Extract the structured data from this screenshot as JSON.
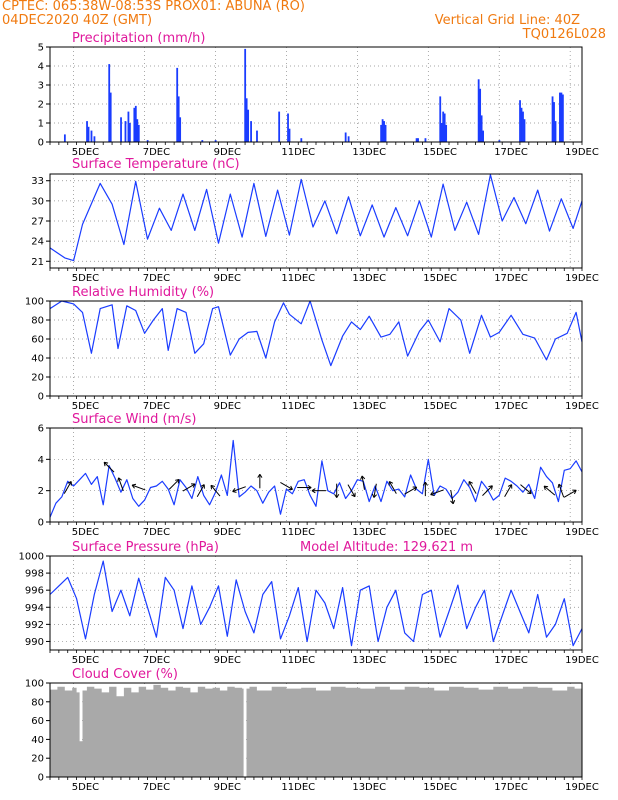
{
  "header": {
    "line1": "CPTEC:  065:38W-08:53S   PROX01: ABUNA (RO)",
    "line2_left": "04DEC2020 40Z (GMT)",
    "line2_right": "Vertical Grid Line: 40Z",
    "line3_right": "TQ0126L028"
  },
  "colors": {
    "title": "#e0189c",
    "header": "#f07a10",
    "series": "#1a3cff",
    "cloud": "#a9a9a9",
    "grid": "#888888"
  },
  "chart_data": [
    {
      "type": "bar",
      "title": "Precipitation (mm/h)",
      "ylim": [
        0,
        5
      ],
      "yticks": [
        0,
        1,
        2,
        3,
        4,
        5
      ],
      "xlim_hours": [
        0,
        360
      ],
      "xtick_labels": [
        "5DEC",
        "7DEC",
        "9DEC",
        "11DEC",
        "13DEC",
        "15DEC",
        "17DEC",
        "19DEC"
      ],
      "bars": [
        [
          10,
          0.4
        ],
        [
          25,
          1.1
        ],
        [
          26,
          0.8
        ],
        [
          28,
          0.6
        ],
        [
          30,
          0.3
        ],
        [
          40,
          4.1
        ],
        [
          41,
          2.6
        ],
        [
          48,
          1.3
        ],
        [
          51,
          1.1
        ],
        [
          53,
          1.6
        ],
        [
          54,
          1.0
        ],
        [
          57,
          1.8
        ],
        [
          58,
          1.9
        ],
        [
          59,
          1.2
        ],
        [
          60,
          0.9
        ],
        [
          66,
          0.1
        ],
        [
          86,
          3.9
        ],
        [
          87,
          2.4
        ],
        [
          88,
          1.3
        ],
        [
          103,
          0.1
        ],
        [
          112,
          0.1
        ],
        [
          132,
          4.9
        ],
        [
          133,
          2.3
        ],
        [
          134,
          1.7
        ],
        [
          136,
          1.1
        ],
        [
          140,
          0.6
        ],
        [
          155,
          1.6
        ],
        [
          161,
          1.5
        ],
        [
          162,
          0.7
        ],
        [
          170,
          0.2
        ],
        [
          200,
          0.5
        ],
        [
          202,
          0.3
        ],
        [
          224,
          0.9
        ],
        [
          225,
          1.2
        ],
        [
          226,
          1.1
        ],
        [
          227,
          0.9
        ],
        [
          248,
          0.2
        ],
        [
          249,
          0.2
        ],
        [
          254,
          0.2
        ],
        [
          264,
          2.4
        ],
        [
          265,
          1.0
        ],
        [
          266,
          1.6
        ],
        [
          267,
          1.5
        ],
        [
          268,
          0.9
        ],
        [
          290,
          3.3
        ],
        [
          291,
          2.8
        ],
        [
          292,
          1.4
        ],
        [
          293,
          0.6
        ],
        [
          304,
          0.1
        ],
        [
          318,
          2.2
        ],
        [
          319,
          1.8
        ],
        [
          320,
          1.6
        ],
        [
          321,
          1.2
        ],
        [
          340,
          2.4
        ],
        [
          341,
          2.1
        ],
        [
          342,
          1.1
        ],
        [
          345,
          2.6
        ],
        [
          346,
          2.6
        ],
        [
          347,
          2.5
        ]
      ]
    },
    {
      "type": "line",
      "title": "Surface Temperature (nC)",
      "ylim": [
        20,
        34
      ],
      "yticks": [
        21,
        24,
        27,
        30,
        33
      ],
      "xlim_hours": [
        0,
        360
      ],
      "xtick_labels": [
        "5DEC",
        "7DEC",
        "9DEC",
        "11DEC",
        "13DEC",
        "15DEC",
        "17DEC",
        "19DEC"
      ],
      "x": [
        0,
        10,
        16,
        22,
        34,
        42,
        50,
        58,
        66,
        74,
        82,
        90,
        98,
        106,
        114,
        122,
        130,
        138,
        146,
        154,
        162,
        170,
        178,
        186,
        194,
        202,
        210,
        218,
        226,
        234,
        242,
        250,
        258,
        266,
        274,
        282,
        290,
        298,
        306,
        314,
        322,
        330,
        338,
        346,
        354,
        360
      ],
      "y": [
        23.0,
        21.5,
        21.1,
        26.5,
        32.6,
        29.5,
        23.5,
        32.9,
        24.3,
        28.9,
        25.6,
        31.0,
        25.6,
        31.7,
        23.7,
        31.0,
        24.6,
        32.6,
        24.7,
        31.6,
        24.9,
        33.2,
        26.1,
        30.0,
        25.1,
        30.6,
        24.8,
        29.4,
        24.6,
        29.0,
        24.8,
        30.0,
        24.6,
        32.5,
        25.6,
        29.8,
        25.0,
        33.9,
        27.0,
        30.5,
        26.6,
        31.6,
        25.5,
        30.3,
        25.9,
        30.0
      ]
    },
    {
      "type": "line",
      "title": "Relative Humidity (%)",
      "ylim": [
        0,
        100
      ],
      "yticks": [
        0,
        20,
        40,
        60,
        80,
        100
      ],
      "xlim_hours": [
        0,
        360
      ],
      "xtick_labels": [
        "5DEC",
        "7DEC",
        "9DEC",
        "11DEC",
        "13DEC",
        "15DEC",
        "17DEC",
        "19DEC"
      ],
      "x": [
        0,
        8,
        16,
        22,
        28,
        34,
        42,
        46,
        52,
        58,
        64,
        70,
        76,
        80,
        86,
        92,
        98,
        104,
        110,
        114,
        122,
        128,
        134,
        140,
        146,
        152,
        158,
        162,
        170,
        176,
        184,
        190,
        198,
        204,
        210,
        216,
        224,
        230,
        236,
        242,
        250,
        256,
        264,
        270,
        278,
        284,
        292,
        298,
        304,
        312,
        320,
        328,
        336,
        342,
        350,
        356,
        360
      ],
      "y": [
        92,
        100,
        97,
        88,
        45,
        92,
        96,
        50,
        95,
        90,
        66,
        80,
        92,
        48,
        92,
        88,
        45,
        55,
        92,
        94,
        43,
        60,
        67,
        68,
        40,
        78,
        98,
        86,
        76,
        100,
        59,
        32,
        63,
        78,
        70,
        84,
        62,
        65,
        78,
        42,
        68,
        80,
        57,
        92,
        80,
        45,
        85,
        62,
        67,
        85,
        65,
        61,
        38,
        60,
        66,
        88,
        57
      ]
    },
    {
      "type": "line",
      "title": "Surface Wind (m/s)",
      "ylim": [
        0,
        6
      ],
      "yticks": [
        0,
        2,
        4,
        6
      ],
      "xlim_hours": [
        0,
        360
      ],
      "xtick_labels": [
        "5DEC",
        "7DEC",
        "9DEC",
        "11DEC",
        "13DEC",
        "15DEC",
        "17DEC",
        "19DEC"
      ],
      "x": [
        0,
        4,
        8,
        12,
        16,
        20,
        24,
        28,
        32,
        36,
        40,
        44,
        48,
        52,
        56,
        60,
        64,
        68,
        72,
        76,
        80,
        84,
        88,
        92,
        96,
        100,
        104,
        108,
        112,
        116,
        120,
        124,
        128,
        132,
        136,
        140,
        144,
        148,
        152,
        156,
        160,
        164,
        168,
        172,
        176,
        180,
        184,
        188,
        192,
        196,
        200,
        204,
        208,
        212,
        216,
        220,
        224,
        228,
        232,
        236,
        240,
        244,
        248,
        252,
        256,
        260,
        264,
        268,
        272,
        276,
        280,
        284,
        288,
        292,
        296,
        300,
        304,
        308,
        312,
        316,
        320,
        324,
        328,
        332,
        336,
        340,
        344,
        348,
        352,
        356,
        360
      ],
      "y": [
        0.3,
        1.2,
        1.6,
        2.6,
        2.3,
        2.7,
        3.1,
        2.4,
        2.9,
        1.1,
        3.6,
        2.8,
        1.9,
        2.7,
        1.5,
        1.0,
        1.4,
        2.2,
        2.3,
        2.6,
        2.1,
        1.1,
        2.7,
        2.2,
        1.5,
        2.9,
        1.7,
        1.1,
        1.9,
        3.0,
        1.7,
        5.2,
        1.6,
        1.9,
        2.3,
        2.0,
        1.2,
        1.9,
        2.3,
        0.5,
        2.1,
        1.8,
        2.6,
        2.7,
        1.7,
        1.0,
        3.9,
        2.0,
        1.8,
        2.5,
        1.5,
        2.0,
        2.7,
        2.6,
        1.3,
        2.3,
        1.3,
        2.6,
        2.0,
        2.1,
        1.6,
        3.0,
        2.1,
        1.8,
        4.0,
        1.7,
        2.3,
        2.1,
        1.5,
        1.9,
        2.7,
        2.2,
        1.3,
        2.6,
        2.1,
        1.4,
        1.7,
        2.8,
        2.6,
        2.3,
        1.9,
        2.4,
        1.5,
        3.5,
        2.9,
        2.5,
        1.3,
        3.3,
        3.4,
        3.9,
        3.2
      ],
      "arrows": [
        [
          12,
          2.2,
          60
        ],
        [
          40,
          3.5,
          135
        ],
        [
          48,
          2.4,
          110
        ],
        [
          60,
          2.2,
          160
        ],
        [
          84,
          2.4,
          45
        ],
        [
          94,
          2.2,
          30
        ],
        [
          102,
          2.0,
          60
        ],
        [
          112,
          2.0,
          130
        ],
        [
          128,
          2.1,
          200
        ],
        [
          142,
          2.6,
          90
        ],
        [
          160,
          2.3,
          -30
        ],
        [
          172,
          2.2,
          0
        ],
        [
          182,
          2.0,
          180
        ],
        [
          194,
          2.0,
          -90
        ],
        [
          204,
          2.0,
          -60
        ],
        [
          212,
          2.5,
          100
        ],
        [
          220,
          2.0,
          -100
        ],
        [
          232,
          2.2,
          120
        ],
        [
          244,
          2.0,
          30
        ],
        [
          254,
          2.1,
          90
        ],
        [
          262,
          1.9,
          200
        ],
        [
          272,
          1.6,
          -80
        ],
        [
          286,
          2.2,
          120
        ],
        [
          296,
          2.0,
          45
        ],
        [
          310,
          2.0,
          60
        ],
        [
          322,
          2.1,
          -40
        ],
        [
          338,
          2.0,
          140
        ],
        [
          346,
          2.0,
          110
        ],
        [
          352,
          1.8,
          30
        ]
      ]
    },
    {
      "type": "line",
      "title": "Surface Pressure (hPa)",
      "annotation": "Model Altitude: 129.621 m",
      "ylim": [
        989,
        1000
      ],
      "yticks": [
        990,
        992,
        994,
        996,
        998,
        1000
      ],
      "xlim_hours": [
        0,
        360
      ],
      "xtick_labels": [
        "5DEC",
        "7DEC",
        "9DEC",
        "11DEC",
        "13DEC",
        "15DEC",
        "17DEC",
        "19DEC"
      ],
      "x": [
        0,
        6,
        12,
        18,
        24,
        30,
        36,
        42,
        48,
        54,
        60,
        66,
        72,
        78,
        84,
        90,
        96,
        102,
        108,
        114,
        120,
        126,
        132,
        138,
        144,
        150,
        156,
        162,
        168,
        174,
        180,
        186,
        192,
        198,
        204,
        210,
        216,
        222,
        228,
        234,
        240,
        246,
        252,
        258,
        264,
        270,
        276,
        282,
        288,
        294,
        300,
        306,
        312,
        318,
        324,
        330,
        336,
        342,
        348,
        354,
        360
      ],
      "y": [
        995.5,
        996.5,
        997.5,
        995.0,
        990.3,
        995.5,
        999.4,
        993.5,
        996.0,
        993.0,
        997.4,
        994.0,
        990.5,
        997.5,
        996.0,
        991.5,
        996.5,
        992.0,
        994.0,
        996.5,
        990.6,
        997.2,
        993.5,
        991.0,
        995.5,
        997.0,
        990.3,
        993.0,
        996.3,
        990.0,
        996.0,
        994.5,
        991.5,
        996.3,
        989.5,
        996.0,
        996.5,
        990.0,
        994.0,
        996.0,
        991.0,
        990.0,
        995.5,
        996.0,
        990.5,
        993.5,
        996.6,
        991.5,
        994.0,
        996.0,
        990.0,
        993.0,
        996.0,
        993.5,
        991.0,
        995.5,
        990.5,
        992.0,
        995.0,
        989.5,
        991.5
      ]
    },
    {
      "type": "area",
      "title": "Cloud Cover (%)",
      "ylim": [
        0,
        100
      ],
      "yticks": [
        0,
        20,
        40,
        60,
        80,
        100
      ],
      "xlim_hours": [
        0,
        360
      ],
      "xtick_labels": [
        "5DEC",
        "7DEC",
        "9DEC",
        "11DEC",
        "13DEC",
        "15DEC",
        "17DEC",
        "19DEC"
      ],
      "x": [
        0,
        5,
        10,
        15,
        18,
        20,
        22,
        25,
        30,
        35,
        40,
        45,
        50,
        55,
        60,
        65,
        70,
        75,
        80,
        85,
        90,
        95,
        100,
        105,
        110,
        115,
        120,
        125,
        130,
        131,
        132,
        133,
        135,
        140,
        150,
        160,
        170,
        180,
        190,
        200,
        210,
        220,
        230,
        240,
        250,
        260,
        270,
        280,
        290,
        300,
        310,
        320,
        330,
        340,
        350,
        355,
        360
      ],
      "y": [
        93,
        96,
        92,
        95,
        90,
        38,
        92,
        96,
        94,
        90,
        96,
        86,
        95,
        90,
        96,
        93,
        98,
        95,
        92,
        96,
        95,
        90,
        96,
        94,
        95,
        92,
        96,
        95,
        94,
        0,
        0,
        94,
        96,
        92,
        96,
        94,
        95,
        92,
        96,
        95,
        94,
        96,
        93,
        96,
        95,
        92,
        96,
        95,
        93,
        96,
        94,
        96,
        95,
        92,
        96,
        94,
        95
      ]
    }
  ]
}
